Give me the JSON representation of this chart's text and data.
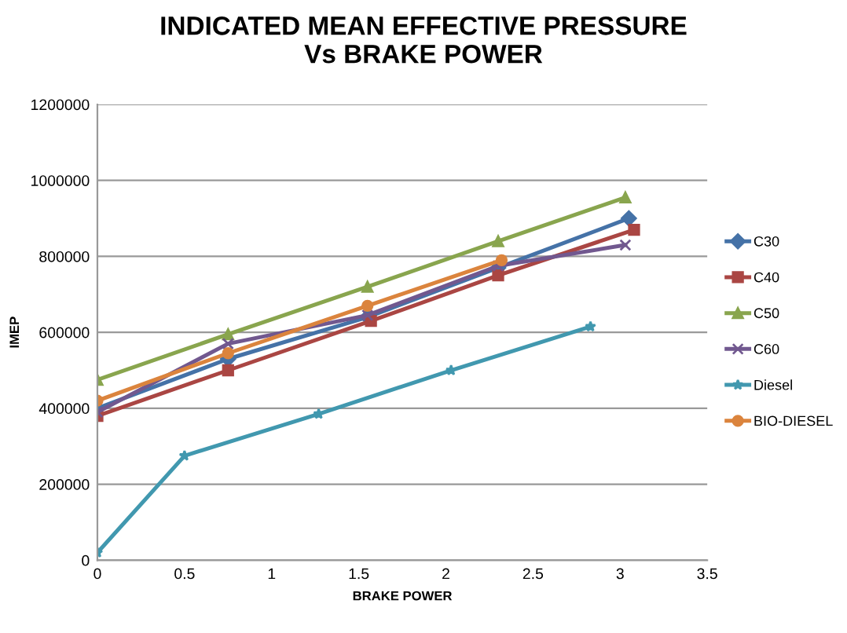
{
  "chart_data": {
    "type": "line",
    "title": "INDICATED MEAN EFFECTIVE PRESSURE\nVs BRAKE POWER",
    "xlabel": "BRAKE POWER",
    "ylabel": "IMEP",
    "xlim": [
      0,
      3.5
    ],
    "xticks": [
      0,
      0.5,
      1,
      1.5,
      2,
      2.5,
      3,
      3.5
    ],
    "ylim": [
      0,
      1200000
    ],
    "yticks": [
      0,
      200000,
      400000,
      600000,
      800000,
      1000000,
      1200000
    ],
    "grid": "y",
    "legend": "right",
    "series": [
      {
        "name": "C30",
        "color": "#4572a7",
        "marker": "diamond",
        "x": [
          0,
          0.75,
          1.55,
          2.3,
          3.05
        ],
        "values": [
          400000,
          530000,
          640000,
          770000,
          900000
        ]
      },
      {
        "name": "C40",
        "color": "#aa4643",
        "marker": "square",
        "x": [
          0,
          0.75,
          1.57,
          2.3,
          3.08
        ],
        "values": [
          380000,
          500000,
          630000,
          750000,
          870000
        ]
      },
      {
        "name": "C50",
        "color": "#89a54e",
        "marker": "triangle",
        "x": [
          0,
          0.75,
          1.55,
          2.3,
          3.03
        ],
        "values": [
          475000,
          595000,
          720000,
          840000,
          955000
        ]
      },
      {
        "name": "C60",
        "color": "#71588f",
        "marker": "cross",
        "x": [
          0,
          0.75,
          1.55,
          2.3,
          3.03
        ],
        "values": [
          390000,
          570000,
          645000,
          775000,
          830000
        ]
      },
      {
        "name": "Diesel",
        "color": "#4198af",
        "marker": "star",
        "x": [
          0,
          0.5,
          1.27,
          2.03,
          2.83
        ],
        "values": [
          20000,
          275000,
          385000,
          500000,
          615000
        ]
      },
      {
        "name": "BIO-DIESEL",
        "color": "#db843d",
        "marker": "circle",
        "x": [
          0,
          0.75,
          1.55,
          2.32
        ],
        "values": [
          420000,
          545000,
          670000,
          790000
        ]
      }
    ]
  }
}
